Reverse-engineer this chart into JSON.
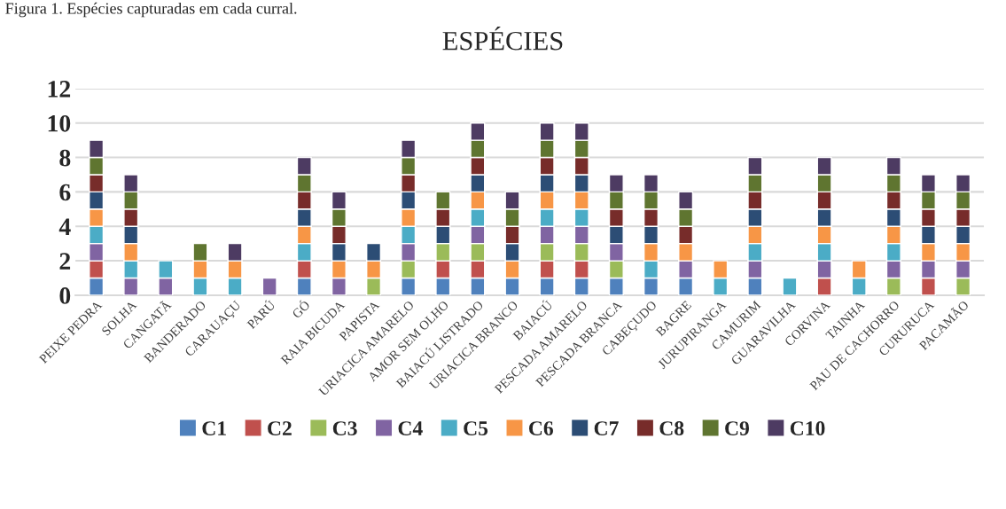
{
  "chart_data": {
    "type": "bar",
    "stacked": true,
    "title": "ESPÉCIES",
    "annotations": [
      "Figura 1. Espécies capturadas em cada curral."
    ],
    "categories": [
      "PEIXE PEDRA",
      "SOLHA",
      "CANGATÃ",
      "BANDERADO",
      "CARAUAÇU",
      "PARÚ",
      "GÓ",
      "RAIA BICUDA",
      "PAPISTA",
      "URIACICA AMARELO",
      "AMOR SEM OLHO",
      "BAIACÚ LISTRADO",
      "URIACICA BRANCO",
      "BAIACÚ",
      "PESCADA AMARELO",
      "PESCADA BRANCA",
      "CABEÇUDO",
      "BAGRE",
      "JURUPIRANGA",
      "CAMURIM",
      "GUARAVILHA",
      "CORVINA",
      "TAINHA",
      "PAU DE CACHORRO",
      "CURURUCA",
      "PACAMÃO"
    ],
    "series": [
      {
        "name": "C1",
        "color": "#4f81bd",
        "values": [
          1,
          null,
          null,
          null,
          null,
          null,
          1,
          null,
          null,
          1,
          1,
          1,
          1,
          1,
          1,
          1,
          1,
          1,
          null,
          1,
          null,
          null,
          null,
          null,
          null,
          null
        ]
      },
      {
        "name": "C2",
        "color": "#c0504d",
        "values": [
          1,
          null,
          null,
          null,
          null,
          null,
          1,
          null,
          null,
          null,
          1,
          1,
          null,
          1,
          1,
          null,
          null,
          null,
          null,
          null,
          null,
          1,
          null,
          null,
          1,
          null
        ]
      },
      {
        "name": "C3",
        "color": "#9bbb59",
        "values": [
          null,
          null,
          null,
          null,
          null,
          null,
          null,
          null,
          1,
          1,
          1,
          1,
          null,
          1,
          1,
          1,
          null,
          null,
          null,
          null,
          null,
          null,
          null,
          1,
          null,
          1
        ]
      },
      {
        "name": "C4",
        "color": "#8064a2",
        "values": [
          1,
          1,
          1,
          null,
          null,
          1,
          null,
          1,
          null,
          1,
          null,
          1,
          null,
          1,
          1,
          1,
          null,
          1,
          null,
          1,
          null,
          1,
          null,
          1,
          1,
          1
        ]
      },
      {
        "name": "C5",
        "color": "#4bacc6",
        "values": [
          1,
          1,
          1,
          1,
          1,
          null,
          1,
          null,
          null,
          1,
          null,
          1,
          null,
          1,
          1,
          null,
          1,
          null,
          1,
          1,
          1,
          1,
          1,
          1,
          null,
          null
        ]
      },
      {
        "name": "C6",
        "color": "#f79646",
        "values": [
          1,
          1,
          null,
          1,
          1,
          null,
          1,
          1,
          1,
          1,
          null,
          1,
          1,
          1,
          1,
          null,
          1,
          1,
          1,
          1,
          null,
          1,
          1,
          1,
          1,
          1
        ]
      },
      {
        "name": "C7",
        "color": "#2c4d75",
        "values": [
          1,
          1,
          null,
          null,
          null,
          null,
          1,
          1,
          1,
          1,
          1,
          1,
          1,
          1,
          1,
          1,
          1,
          null,
          null,
          1,
          null,
          1,
          null,
          1,
          1,
          1
        ]
      },
      {
        "name": "C8",
        "color": "#772c2a",
        "values": [
          1,
          1,
          null,
          null,
          null,
          null,
          1,
          1,
          null,
          1,
          1,
          1,
          1,
          1,
          1,
          1,
          1,
          1,
          null,
          1,
          null,
          1,
          null,
          1,
          1,
          1
        ]
      },
      {
        "name": "C9",
        "color": "#5f7530",
        "values": [
          1,
          1,
          null,
          1,
          null,
          null,
          1,
          1,
          null,
          1,
          1,
          1,
          1,
          1,
          1,
          1,
          1,
          1,
          null,
          1,
          null,
          1,
          null,
          1,
          1,
          1
        ]
      },
      {
        "name": "C10",
        "color": "#4d3b62",
        "values": [
          1,
          1,
          null,
          null,
          1,
          null,
          1,
          1,
          null,
          1,
          null,
          1,
          1,
          1,
          1,
          1,
          1,
          1,
          null,
          1,
          null,
          1,
          null,
          1,
          1,
          1
        ]
      }
    ],
    "ylim": [
      0,
      12
    ],
    "yticks": [
      0,
      2,
      4,
      6,
      8,
      10,
      12
    ],
    "grid": "y",
    "legend": "bottom"
  }
}
